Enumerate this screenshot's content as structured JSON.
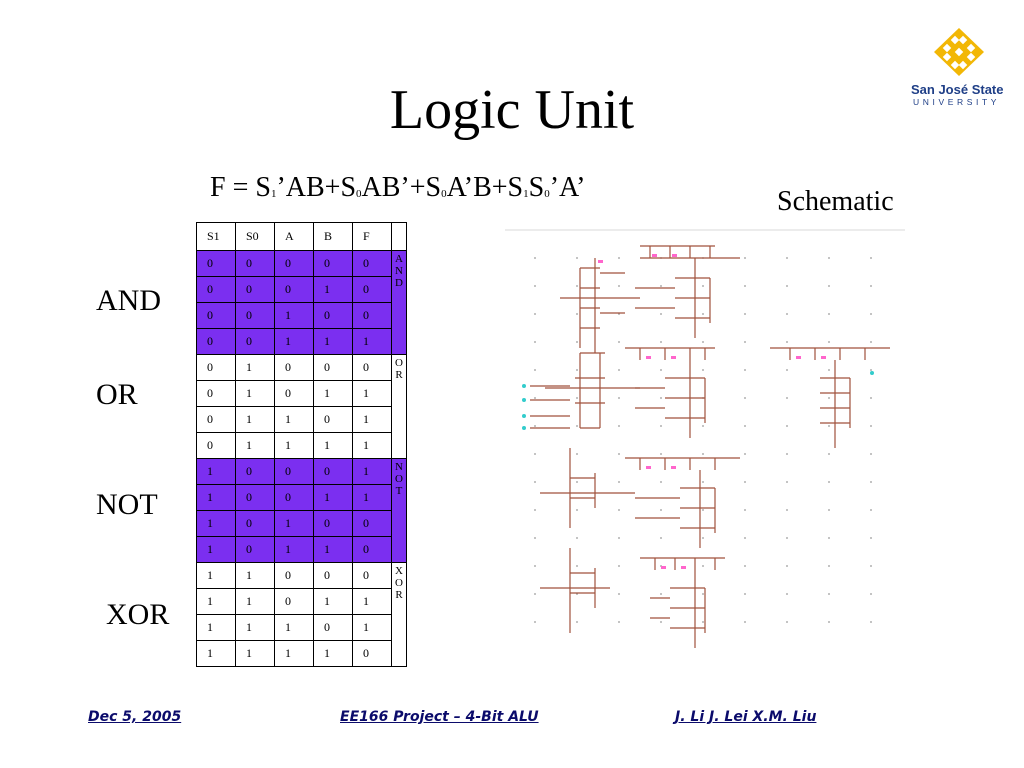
{
  "slide": {
    "title": "Logic Unit",
    "formula_parts": {
      "p1": "F = S",
      "s1": "1",
      "p2": "’AB+S",
      "s2": "0",
      "p3": "AB’+S",
      "s3": "0",
      "p4": "A’B+S",
      "s4": "1",
      "p5": "S",
      "s5": "0",
      "p6": "’A’"
    },
    "schematic_label": "Schematic",
    "operations": [
      "AND",
      "OR",
      "NOT",
      "XOR"
    ]
  },
  "logo": {
    "line1": "San José State",
    "line2": "UNIVERSITY",
    "color": "#1f3f87",
    "mark_color": "#f2b705"
  },
  "table": {
    "headers": [
      "S1",
      "S0",
      "A",
      "B",
      "F",
      ""
    ],
    "highlight_color": "#7b2ff0",
    "groups": [
      {
        "label": "AND",
        "highlight": true,
        "rows": [
          [
            "0",
            "0",
            "0",
            "0",
            "0"
          ],
          [
            "0",
            "0",
            "0",
            "1",
            "0"
          ],
          [
            "0",
            "0",
            "1",
            "0",
            "0"
          ],
          [
            "0",
            "0",
            "1",
            "1",
            "1"
          ]
        ]
      },
      {
        "label": "OR",
        "highlight": false,
        "rows": [
          [
            "0",
            "1",
            "0",
            "0",
            "0"
          ],
          [
            "0",
            "1",
            "0",
            "1",
            "1"
          ],
          [
            "0",
            "1",
            "1",
            "0",
            "1"
          ],
          [
            "0",
            "1",
            "1",
            "1",
            "1"
          ]
        ]
      },
      {
        "label": "NOT",
        "highlight": true,
        "rows": [
          [
            "1",
            "0",
            "0",
            "0",
            "1"
          ],
          [
            "1",
            "0",
            "0",
            "1",
            "1"
          ],
          [
            "1",
            "0",
            "1",
            "0",
            "0"
          ],
          [
            "1",
            "0",
            "1",
            "1",
            "0"
          ]
        ]
      },
      {
        "label": "XOR",
        "highlight": false,
        "rows": [
          [
            "1",
            "1",
            "0",
            "0",
            "0"
          ],
          [
            "1",
            "1",
            "0",
            "1",
            "1"
          ],
          [
            "1",
            "1",
            "1",
            "0",
            "1"
          ],
          [
            "1",
            "1",
            "1",
            "1",
            "0"
          ]
        ]
      }
    ]
  },
  "footer": {
    "date": "Dec 5, 2005",
    "project": "EE166 Project – 4-Bit ALU",
    "authors": "J. Li  J. Lei  X.M. Liu"
  }
}
